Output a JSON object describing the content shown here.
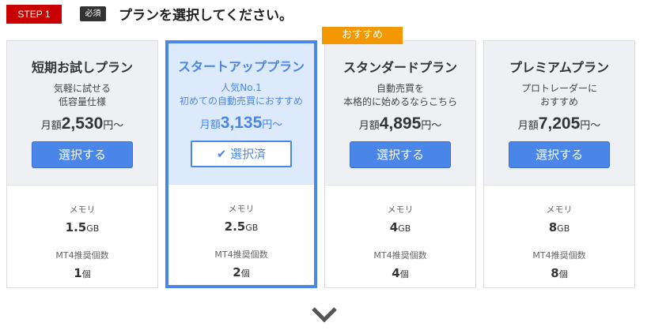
{
  "header": {
    "step": "STEP 1",
    "required": "必須",
    "title": "プランを選択してください。"
  },
  "recommend_badge": "おすすめ",
  "accent": "#4a86e8",
  "plans": [
    {
      "name": "短期お試しプラン",
      "desc1": "気軽に試せる",
      "desc2": "低容量仕様",
      "price_prefix": "月額",
      "price": "2,530",
      "price_suffix": "円～",
      "button": "選択する",
      "memory_label": "メモリ",
      "memory": "1.5",
      "memory_unit": "GB",
      "mt4_label": "MT4推奨個数",
      "mt4": "1",
      "mt4_unit": "個"
    },
    {
      "name": "スタートアッププラン",
      "desc1": "人気No.1",
      "desc2": "初めての自動売買におすすめ",
      "price_prefix": "月額",
      "price": "3,135",
      "price_suffix": "円～",
      "button": "選択済",
      "selected": true,
      "memory_label": "メモリ",
      "memory": "2.5",
      "memory_unit": "GB",
      "mt4_label": "MT4推奨個数",
      "mt4": "2",
      "mt4_unit": "個"
    },
    {
      "name": "スタンダードプラン",
      "desc1": "自動売買を",
      "desc2": "本格的に始めるならこちら",
      "price_prefix": "月額",
      "price": "4,895",
      "price_suffix": "円～",
      "button": "選択する",
      "memory_label": "メモリ",
      "memory": "4",
      "memory_unit": "GB",
      "mt4_label": "MT4推奨個数",
      "mt4": "4",
      "mt4_unit": "個"
    },
    {
      "name": "プレミアムプラン",
      "desc1": "プロトレーダーに",
      "desc2": "おすすめ",
      "price_prefix": "月額",
      "price": "7,205",
      "price_suffix": "円～",
      "button": "選択する",
      "memory_label": "メモリ",
      "memory": "8",
      "memory_unit": "GB",
      "mt4_label": "MT4推奨個数",
      "mt4": "8",
      "mt4_unit": "個"
    }
  ]
}
